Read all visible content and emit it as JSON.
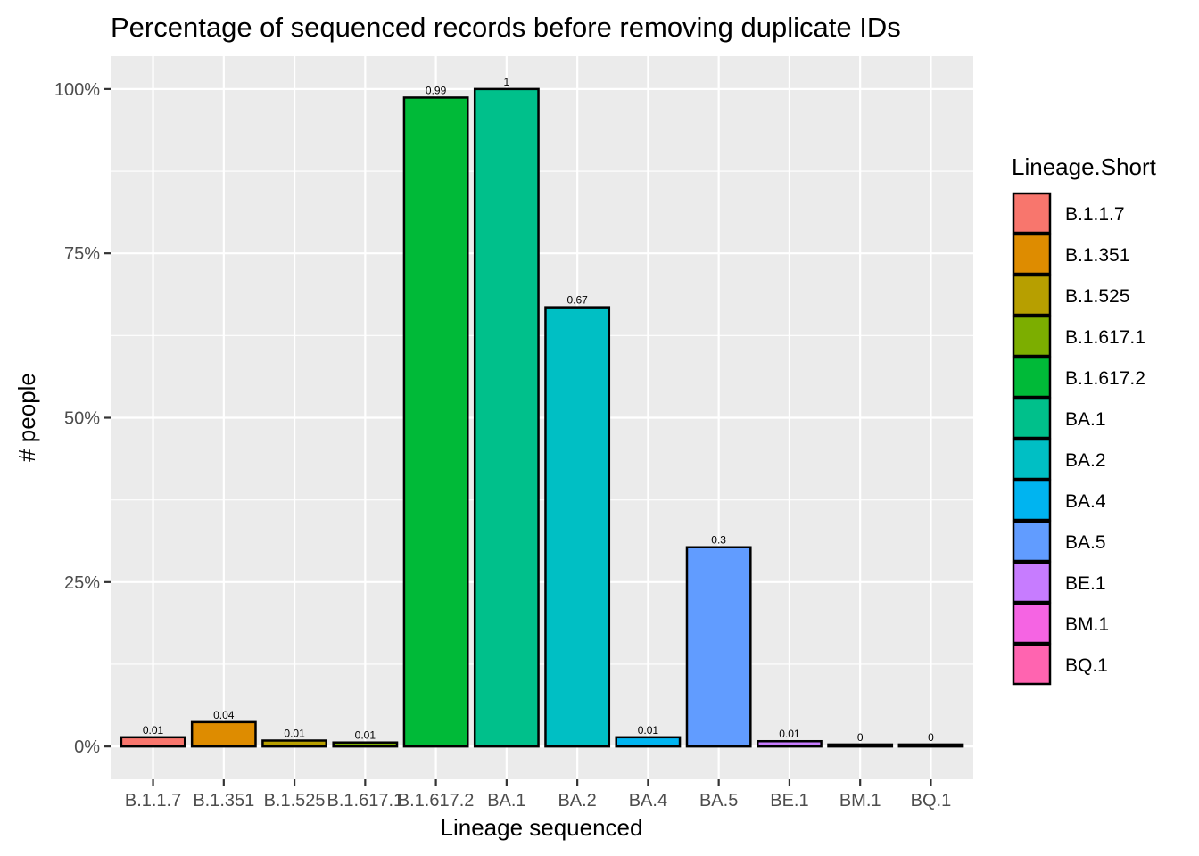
{
  "chart_data": {
    "type": "bar",
    "title": "Percentage of sequenced records before removing duplicate IDs",
    "xlabel": "Lineage sequenced",
    "ylabel": "# people",
    "ylim": [
      -0.05,
      1.05
    ],
    "yticks": [
      0,
      0.25,
      0.5,
      0.75,
      1
    ],
    "ytick_labels": [
      "0%",
      "25%",
      "50%",
      "75%",
      "100%"
    ],
    "grid": true,
    "legend": {
      "title": "Lineage.Short",
      "position": "right"
    },
    "categories": [
      "B.1.1.7",
      "B.1.351",
      "B.1.525",
      "B.1.617.1",
      "B.1.617.2",
      "BA.1",
      "BA.2",
      "BA.4",
      "BA.5",
      "BE.1",
      "BM.1",
      "BQ.1"
    ],
    "values": [
      0.014,
      0.037,
      0.009,
      0.006,
      0.987,
      1.0,
      0.668,
      0.014,
      0.303,
      0.008,
      0.003,
      0.003
    ],
    "data_labels": [
      "0.01",
      "0.04",
      "0.01",
      "0.01",
      "0.99",
      "1",
      "0.67",
      "0.01",
      "0.3",
      "0.01",
      "0",
      "0"
    ],
    "colors": [
      "#F8766D",
      "#DE8C00",
      "#B79F00",
      "#7CAE00",
      "#00BA38",
      "#00C08B",
      "#00BFC4",
      "#00B4F0",
      "#619CFF",
      "#C77CFF",
      "#F564E3",
      "#FF64B0"
    ],
    "panel_background": "#EBEBEB",
    "grid_color": "#FFFFFF"
  }
}
